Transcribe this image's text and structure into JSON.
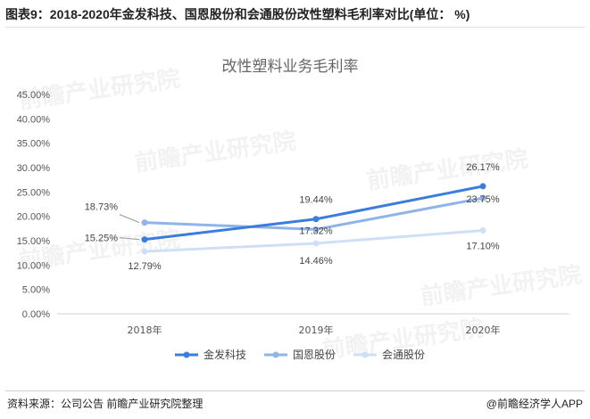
{
  "figure_title": "图表9：2018-2020年金发科技、国恩股份和会通股份改性塑料毛利率对比(单位： %)",
  "watermark_text": "前瞻产业研究院",
  "chart_data": {
    "type": "line",
    "title": "改性塑料业务毛利率",
    "categories": [
      "2018年",
      "2019年",
      "2020年"
    ],
    "ylim": [
      0,
      45
    ],
    "yticks": [
      "0.00%",
      "5.00%",
      "10.00%",
      "15.00%",
      "20.00%",
      "25.00%",
      "30.00%",
      "35.00%",
      "40.00%",
      "45.00%"
    ],
    "ytick_values": [
      0,
      5,
      10,
      15,
      20,
      25,
      30,
      35,
      40,
      45
    ],
    "legend_position": "bottom",
    "grid": false,
    "series": [
      {
        "name": "金发科技",
        "values": [
          15.25,
          19.44,
          26.17
        ],
        "labels": [
          "15.25%",
          "19.44%",
          "26.17%"
        ],
        "color": "#3b7ddd"
      },
      {
        "name": "国恩股份",
        "values": [
          18.73,
          17.32,
          23.75
        ],
        "labels": [
          "18.73%",
          "17.32%",
          "23.75%"
        ],
        "color": "#8fb4ea"
      },
      {
        "name": "会通股份",
        "values": [
          12.79,
          14.46,
          17.1
        ],
        "labels": [
          "12.79%",
          "14.46%",
          "17.10%"
        ],
        "color": "#cfe0f6"
      }
    ]
  },
  "footer": {
    "source": "资料来源：公司公告 前瞻产业研究院整理",
    "credit": "@前瞻经济学人APP"
  }
}
